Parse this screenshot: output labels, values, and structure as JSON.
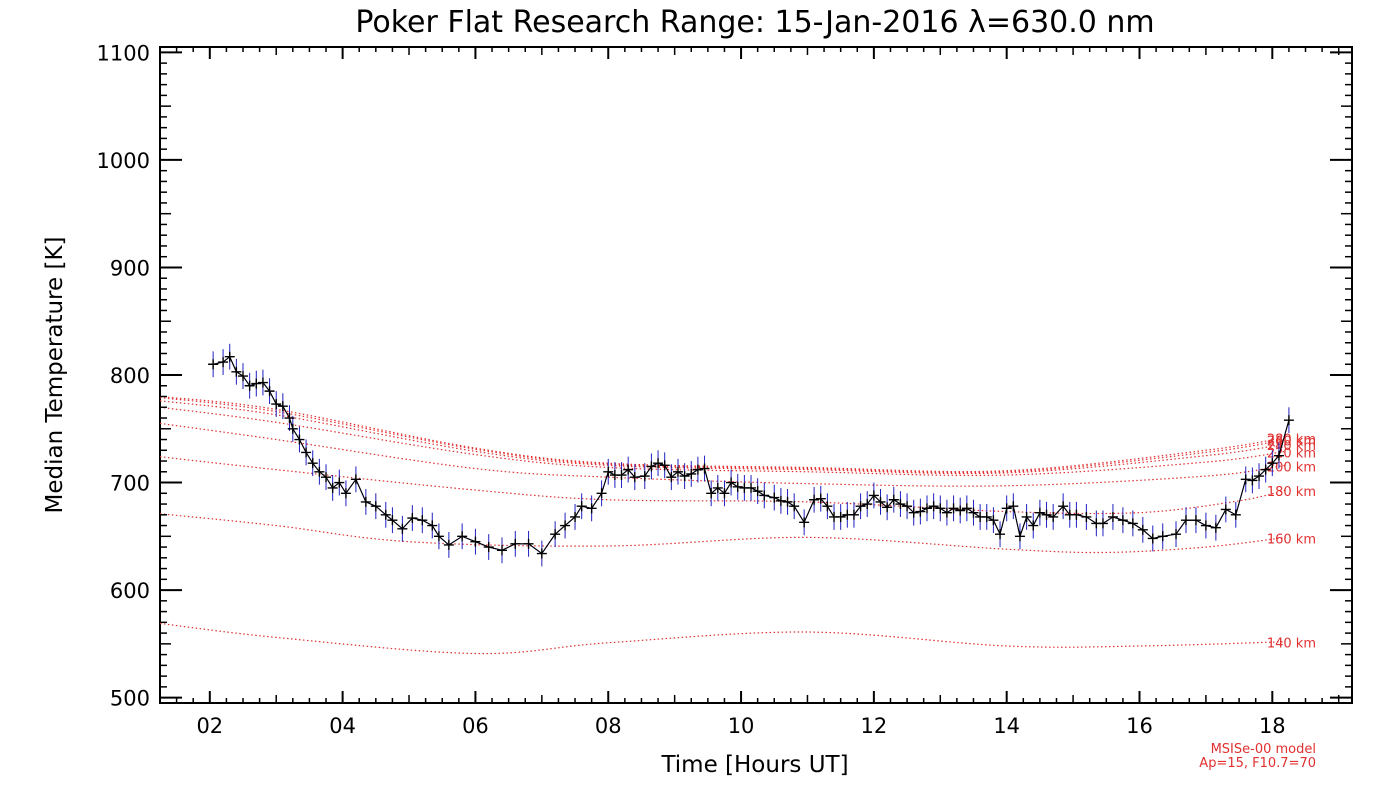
{
  "chart_data": {
    "type": "line",
    "title": "Poker Flat Research Range: 15-Jan-2016 λ=630.0 nm",
    "xlabel": "Time [Hours UT]",
    "ylabel": "Median Temperature [K]",
    "xlim": [
      1.25,
      19.2
    ],
    "ylim": [
      495,
      1105
    ],
    "x_tick_values": [
      2,
      4,
      6,
      8,
      10,
      12,
      14,
      16,
      18
    ],
    "x_tick_labels": [
      "02",
      "04",
      "06",
      "08",
      "10",
      "12",
      "14",
      "16",
      "18"
    ],
    "y_tick_values": [
      500,
      600,
      700,
      800,
      900,
      1000,
      1100
    ],
    "y_tick_labels": [
      "500",
      "600",
      "700",
      "800",
      "900",
      "1000",
      "1100"
    ],
    "colors": {
      "measured": "#000000",
      "errorbar": "#2020c0",
      "model": "#e03030"
    },
    "measured": {
      "name": "Median temperature",
      "error_k": 12,
      "points": [
        [
          2.05,
          810
        ],
        [
          2.2,
          812
        ],
        [
          2.3,
          817
        ],
        [
          2.4,
          803
        ],
        [
          2.5,
          799
        ],
        [
          2.6,
          790
        ],
        [
          2.7,
          792
        ],
        [
          2.8,
          793
        ],
        [
          2.9,
          785
        ],
        [
          3.0,
          773
        ],
        [
          3.1,
          771
        ],
        [
          3.2,
          760
        ],
        [
          3.25,
          750
        ],
        [
          3.35,
          740
        ],
        [
          3.45,
          728
        ],
        [
          3.55,
          718
        ],
        [
          3.65,
          710
        ],
        [
          3.75,
          705
        ],
        [
          3.85,
          695
        ],
        [
          3.95,
          700
        ],
        [
          4.05,
          690
        ],
        [
          4.2,
          703
        ],
        [
          4.35,
          682
        ],
        [
          4.5,
          678
        ],
        [
          4.65,
          670
        ],
        [
          4.75,
          665
        ],
        [
          4.9,
          657
        ],
        [
          5.05,
          667
        ],
        [
          5.2,
          665
        ],
        [
          5.35,
          660
        ],
        [
          5.45,
          650
        ],
        [
          5.6,
          642
        ],
        [
          5.8,
          650
        ],
        [
          6.0,
          645
        ],
        [
          6.2,
          640
        ],
        [
          6.4,
          637
        ],
        [
          6.6,
          643
        ],
        [
          6.8,
          643
        ],
        [
          7.0,
          634
        ],
        [
          7.2,
          652
        ],
        [
          7.35,
          660
        ],
        [
          7.5,
          668
        ],
        [
          7.6,
          678
        ],
        [
          7.75,
          676
        ],
        [
          7.9,
          690
        ],
        [
          8.0,
          710
        ],
        [
          8.1,
          707
        ],
        [
          8.2,
          707
        ],
        [
          8.3,
          712
        ],
        [
          8.4,
          705
        ],
        [
          8.55,
          706
        ],
        [
          8.65,
          715
        ],
        [
          8.75,
          718
        ],
        [
          8.85,
          716
        ],
        [
          8.95,
          705
        ],
        [
          9.05,
          710
        ],
        [
          9.15,
          706
        ],
        [
          9.25,
          708
        ],
        [
          9.35,
          712
        ],
        [
          9.45,
          713
        ],
        [
          9.55,
          690
        ],
        [
          9.65,
          695
        ],
        [
          9.75,
          690
        ],
        [
          9.85,
          700
        ],
        [
          9.95,
          696
        ],
        [
          10.05,
          695
        ],
        [
          10.15,
          695
        ],
        [
          10.25,
          692
        ],
        [
          10.35,
          688
        ],
        [
          10.5,
          686
        ],
        [
          10.6,
          683
        ],
        [
          10.7,
          682
        ],
        [
          10.8,
          678
        ],
        [
          10.95,
          663
        ],
        [
          11.1,
          684
        ],
        [
          11.2,
          685
        ],
        [
          11.3,
          678
        ],
        [
          11.4,
          668
        ],
        [
          11.5,
          668
        ],
        [
          11.6,
          670
        ],
        [
          11.7,
          670
        ],
        [
          11.8,
          678
        ],
        [
          11.9,
          680
        ],
        [
          12.0,
          688
        ],
        [
          12.1,
          682
        ],
        [
          12.2,
          677
        ],
        [
          12.3,
          684
        ],
        [
          12.4,
          680
        ],
        [
          12.5,
          678
        ],
        [
          12.6,
          672
        ],
        [
          12.7,
          673
        ],
        [
          12.8,
          676
        ],
        [
          12.9,
          678
        ],
        [
          13.0,
          676
        ],
        [
          13.1,
          672
        ],
        [
          13.2,
          676
        ],
        [
          13.3,
          674
        ],
        [
          13.4,
          676
        ],
        [
          13.5,
          672
        ],
        [
          13.6,
          668
        ],
        [
          13.7,
          668
        ],
        [
          13.8,
          665
        ],
        [
          13.9,
          652
        ],
        [
          14.0,
          676
        ],
        [
          14.1,
          678
        ],
        [
          14.2,
          650
        ],
        [
          14.3,
          668
        ],
        [
          14.4,
          660
        ],
        [
          14.5,
          672
        ],
        [
          14.6,
          670
        ],
        [
          14.7,
          668
        ],
        [
          14.85,
          678
        ],
        [
          14.95,
          670
        ],
        [
          15.05,
          670
        ],
        [
          15.2,
          668
        ],
        [
          15.35,
          662
        ],
        [
          15.45,
          662
        ],
        [
          15.6,
          668
        ],
        [
          15.75,
          665
        ],
        [
          15.9,
          662
        ],
        [
          16.05,
          656
        ],
        [
          16.2,
          648
        ],
        [
          16.35,
          650
        ],
        [
          16.55,
          652
        ],
        [
          16.7,
          665
        ],
        [
          16.85,
          665
        ],
        [
          17.0,
          660
        ],
        [
          17.15,
          658
        ],
        [
          17.3,
          675
        ],
        [
          17.45,
          670
        ],
        [
          17.6,
          703
        ],
        [
          17.7,
          702
        ],
        [
          17.8,
          706
        ],
        [
          17.9,
          712
        ],
        [
          18.0,
          718
        ],
        [
          18.1,
          725
        ],
        [
          18.25,
          758
        ]
      ]
    },
    "model": {
      "name": "MSISe-00 model",
      "note_line1": "MSISe-00 model",
      "note_line2": "Ap=15, F10.7=70",
      "curves": [
        {
          "label": "140 km",
          "points": [
            [
              1.25,
              569
            ],
            [
              3,
              556
            ],
            [
              6,
              541
            ],
            [
              8,
              551
            ],
            [
              11,
              561
            ],
            [
              14,
              548
            ],
            [
              16,
              548
            ],
            [
              18.2,
              552
            ]
          ]
        },
        {
          "label": "160 km",
          "points": [
            [
              1.25,
              671
            ],
            [
              3,
              660
            ],
            [
              5,
              645
            ],
            [
              8,
              641
            ],
            [
              11,
              649
            ],
            [
              14,
              638
            ],
            [
              15.5,
              635
            ],
            [
              17,
              640
            ],
            [
              18.2,
              649
            ]
          ]
        },
        {
          "label": "180 km",
          "points": [
            [
              1.25,
              724
            ],
            [
              3,
              712
            ],
            [
              6,
              693
            ],
            [
              8,
              684
            ],
            [
              11,
              682
            ],
            [
              14,
              673
            ],
            [
              16,
              672
            ],
            [
              17.5,
              683
            ],
            [
              18.2,
              693
            ]
          ]
        },
        {
          "label": "200 km",
          "points": [
            [
              1.25,
              755
            ],
            [
              3,
              740
            ],
            [
              6,
              713
            ],
            [
              8,
              705
            ],
            [
              11,
              699
            ],
            [
              14,
              697
            ],
            [
              17,
              706
            ],
            [
              18.2,
              716
            ]
          ]
        },
        {
          "label": "220 km",
          "points": [
            [
              1.25,
              770
            ],
            [
              3,
              756
            ],
            [
              6,
              726
            ],
            [
              8,
              714
            ],
            [
              11,
              710
            ],
            [
              14,
              707
            ],
            [
              17,
              719
            ],
            [
              18.2,
              729
            ]
          ]
        },
        {
          "label": "240 km",
          "points": [
            [
              1.25,
              776
            ],
            [
              3,
              763
            ],
            [
              6,
              729
            ],
            [
              8,
              716
            ],
            [
              11,
              712
            ],
            [
              14,
              709
            ],
            [
              17,
              725
            ],
            [
              18.2,
              736
            ]
          ]
        },
        {
          "label": "260 km",
          "points": [
            [
              1.25,
              779
            ],
            [
              3,
              766
            ],
            [
              6,
              731
            ],
            [
              8,
              717
            ],
            [
              11,
              713
            ],
            [
              14,
              710
            ],
            [
              17,
              728
            ],
            [
              18.2,
              740
            ]
          ]
        },
        {
          "label": "280 km",
          "points": [
            [
              1.25,
              780
            ],
            [
              3,
              768
            ],
            [
              6,
              732
            ],
            [
              8,
              718
            ],
            [
              11,
              714
            ],
            [
              14,
              711
            ],
            [
              17,
              730
            ],
            [
              18.2,
              742
            ]
          ]
        }
      ]
    }
  }
}
